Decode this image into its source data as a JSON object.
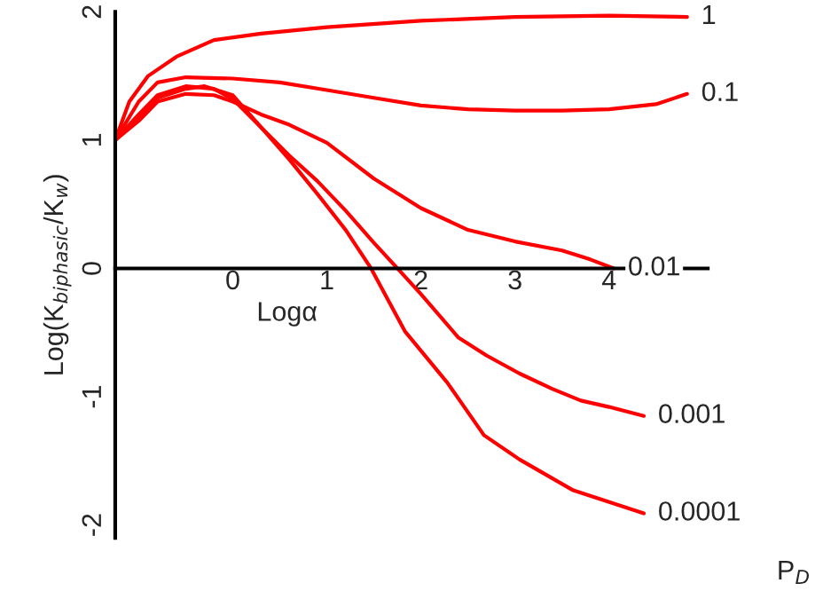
{
  "chart_data": {
    "type": "line",
    "xlabel": "Logα",
    "ylabel": "Log(K$_{biphasic}$/K$_{w}$)",
    "legend_title": "P$_{D}$",
    "xlim": [
      -1.25,
      5.05
    ],
    "ylim": [
      -2.1,
      2.0
    ],
    "xticks": [
      0,
      1,
      2,
      3,
      4
    ],
    "yticks": [
      -2,
      -1,
      0,
      1,
      2
    ],
    "grid": false,
    "legend": false,
    "marker": "none",
    "line_style": "solid",
    "series": [
      {
        "name": "1",
        "color": "#ff0000",
        "x": [
          -1.25,
          -1.1,
          -0.9,
          -0.6,
          -0.2,
          0.3,
          1,
          2,
          3,
          4,
          4.83
        ],
        "values": [
          1.0,
          1.3,
          1.5,
          1.65,
          1.78,
          1.83,
          1.88,
          1.93,
          1.96,
          1.97,
          1.96
        ]
      },
      {
        "name": "0.1",
        "color": "#ff0000",
        "x": [
          -1.25,
          -1.0,
          -0.8,
          -0.5,
          0,
          0.5,
          1,
          1.5,
          2,
          2.5,
          3,
          3.5,
          4,
          4.5,
          4.83
        ],
        "values": [
          1.0,
          1.3,
          1.45,
          1.49,
          1.48,
          1.45,
          1.39,
          1.33,
          1.27,
          1.24,
          1.23,
          1.23,
          1.24,
          1.28,
          1.36
        ]
      },
      {
        "name": "0.01",
        "color": "#ff0000",
        "x": [
          -1.25,
          -1,
          -0.8,
          -0.5,
          -0.2,
          0,
          0.3,
          0.6,
          1,
          1.5,
          2,
          2.5,
          3,
          3.5,
          3.8,
          4.05
        ],
        "values": [
          1.0,
          1.15,
          1.3,
          1.36,
          1.35,
          1.3,
          1.2,
          1.12,
          0.98,
          0.7,
          0.47,
          0.3,
          0.21,
          0.14,
          0.07,
          0.0
        ]
      },
      {
        "name": "0.001",
        "color": "#ff0000",
        "x": [
          -1.25,
          -1,
          -0.8,
          -0.5,
          -0.2,
          0,
          0.3,
          0.6,
          0.9,
          1.2,
          1.5,
          1.75,
          2,
          2.4,
          2.7,
          3.05,
          3.4,
          3.7,
          4.0,
          4.37
        ],
        "values": [
          1.0,
          1.2,
          1.35,
          1.42,
          1.4,
          1.32,
          1.1,
          0.88,
          0.68,
          0.45,
          0.2,
          0.0,
          -0.2,
          -0.54,
          -0.68,
          -0.82,
          -0.94,
          -1.03,
          -1.08,
          -1.15
        ]
      },
      {
        "name": "0.0001",
        "color": "#ff0000",
        "x": [
          -1.25,
          -1,
          -0.8,
          -0.5,
          -0.3,
          0,
          0.3,
          0.6,
          0.9,
          1.2,
          1.47,
          1.83,
          2.28,
          2.67,
          3.05,
          3.62,
          4.37
        ],
        "values": [
          1.0,
          1.18,
          1.33,
          1.4,
          1.42,
          1.35,
          1.1,
          0.85,
          0.58,
          0.3,
          0.0,
          -0.49,
          -0.89,
          -1.3,
          -1.49,
          -1.73,
          -1.91
        ]
      }
    ]
  }
}
